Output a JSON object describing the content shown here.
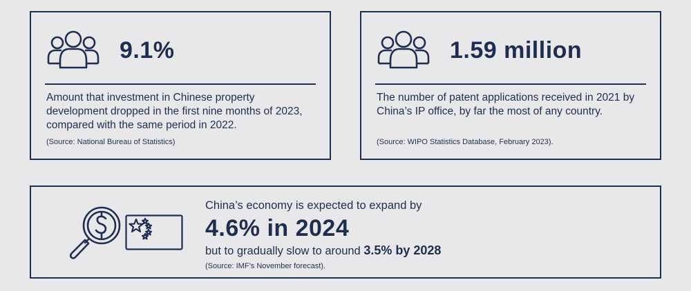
{
  "stat1": {
    "value": "9.1%",
    "description": "Amount that investment in Chinese property development dropped in the first nine months of 2023, compared with the same period in 2022.",
    "source": "(Source: National Bureau of Statistics)",
    "icon": "people-group-icon"
  },
  "stat2": {
    "value": "1.59 million",
    "description": "The number of patent applications received in 2021 by China’s IP office, by far the most of any country.",
    "source": "(Source: WIPO Statistics Database, February 2023).",
    "icon": "people-group-icon"
  },
  "stat3": {
    "intro": "China’s economy is expected to expand by",
    "headline": "4.6% in 2024",
    "followup_prefix": "but to gradually slow to around ",
    "followup_value": "3.5% by 2028",
    "source": "(Source: IMF’s November forecast).",
    "icons": [
      "magnifier-dollar-icon",
      "china-flag-icon"
    ]
  },
  "colors": {
    "navy": "#1f2d4e",
    "background": "#e8e8ea"
  }
}
